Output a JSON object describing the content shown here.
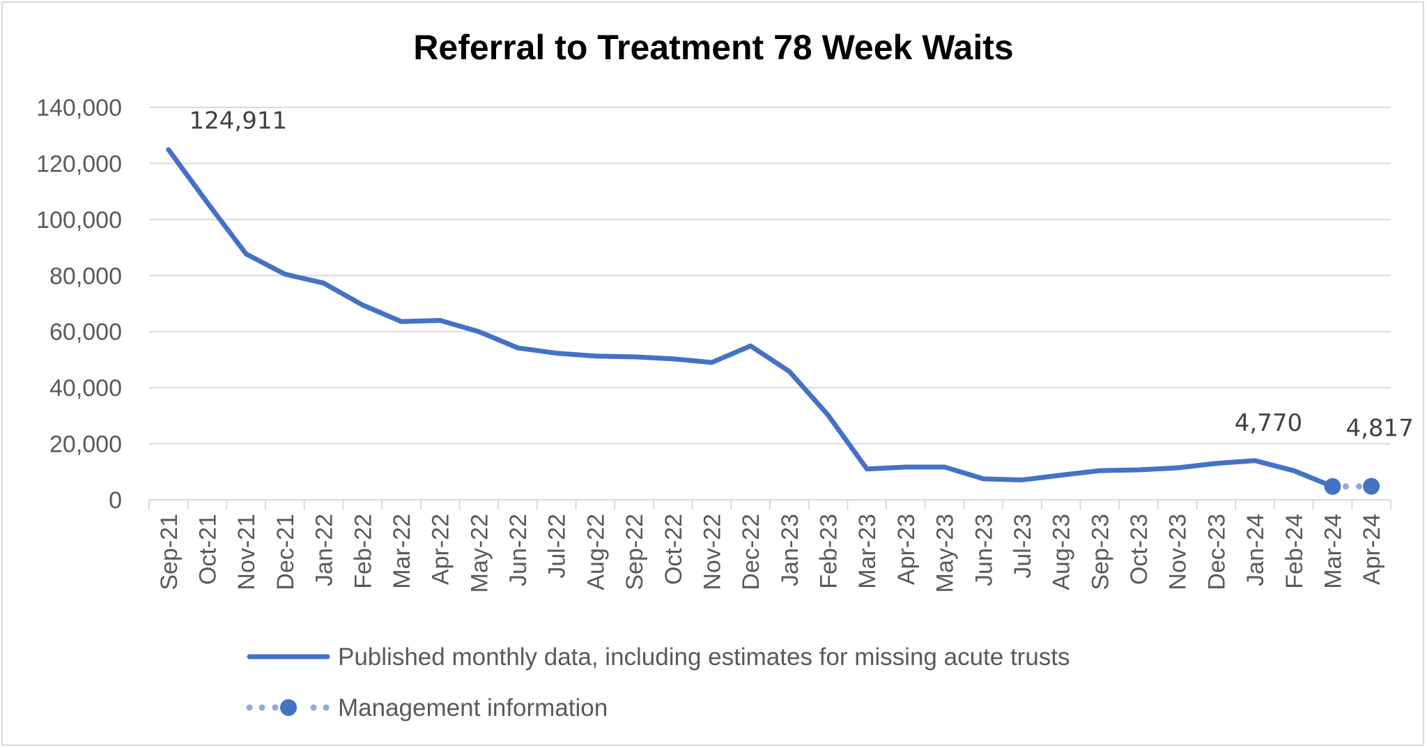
{
  "chart_data": {
    "type": "line",
    "title": "Referral to Treatment 78 Week Waits",
    "xlabel": "",
    "ylabel": "",
    "ylim": [
      0,
      140000
    ],
    "yticks": [
      "0",
      "20,000",
      "40,000",
      "60,000",
      "80,000",
      "100,000",
      "120,000",
      "140,000"
    ],
    "grid": true,
    "legend_position": "bottom",
    "categories": [
      "Sep-21",
      "Oct-21",
      "Nov-21",
      "Dec-21",
      "Jan-22",
      "Feb-22",
      "Mar-22",
      "Apr-22",
      "May-22",
      "Jun-22",
      "Jul-22",
      "Aug-22",
      "Sep-22",
      "Oct-22",
      "Nov-22",
      "Dec-22",
      "Jan-23",
      "Feb-23",
      "Mar-23",
      "Apr-23",
      "May-23",
      "Jun-23",
      "Jul-23",
      "Aug-23",
      "Sep-23",
      "Oct-23",
      "Nov-23",
      "Dec-23",
      "Jan-24",
      "Feb-24",
      "Mar-24",
      "Apr-24"
    ],
    "series": [
      {
        "name": "Published monthly data, including estimates for missing acute trusts",
        "color": "#4472c4",
        "style": "solid",
        "values": [
          124911,
          106000,
          87700,
          80500,
          77300,
          69500,
          63600,
          64000,
          60000,
          54200,
          52300,
          51300,
          51000,
          50300,
          49000,
          54900,
          45800,
          30200,
          11000,
          11700,
          11700,
          7500,
          7100,
          8800,
          10400,
          10700,
          11400,
          13000,
          14000,
          10400,
          4770,
          null
        ]
      },
      {
        "name": "Management information",
        "color": "#4472c4",
        "style": "dotted",
        "values": [
          null,
          null,
          null,
          null,
          null,
          null,
          null,
          null,
          null,
          null,
          null,
          null,
          null,
          null,
          null,
          null,
          null,
          null,
          null,
          null,
          null,
          null,
          null,
          null,
          null,
          null,
          null,
          null,
          null,
          null,
          4770,
          4817
        ]
      }
    ],
    "annotations": [
      {
        "category": "Sep-21",
        "text": "124,911"
      },
      {
        "category": "Mar-24",
        "text": "4,770"
      },
      {
        "category": "Apr-24",
        "text": "4,817"
      }
    ]
  }
}
